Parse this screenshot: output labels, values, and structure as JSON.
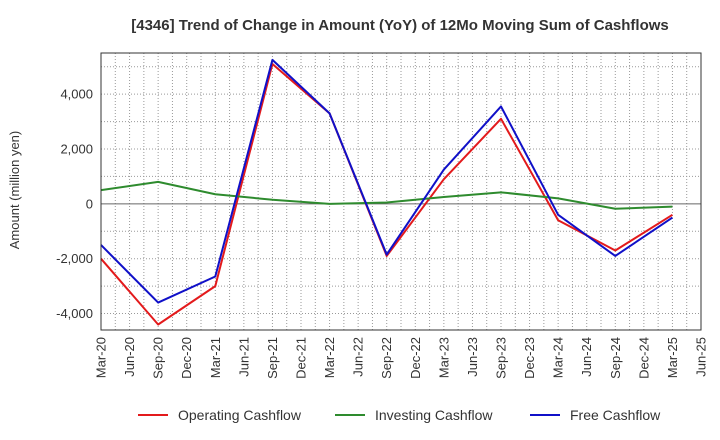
{
  "chart_data": {
    "type": "line",
    "title": "[4346]  Trend of Change in Amount (YoY) of 12Mo Moving Sum of Cashflows",
    "xlabel": "",
    "ylabel": "Amount (million yen)",
    "ylim": [
      -4600,
      5500
    ],
    "yticks": [
      -4000,
      -2000,
      0,
      2000,
      4000
    ],
    "ytick_labels": [
      "-4,000",
      "-2,000",
      "0",
      "2,000",
      "4,000"
    ],
    "categories": [
      "Mar-20",
      "Jun-20",
      "Sep-20",
      "Dec-20",
      "Mar-21",
      "Jun-21",
      "Sep-21",
      "Dec-21",
      "Mar-22",
      "Jun-22",
      "Sep-22",
      "Dec-22",
      "Mar-23",
      "Jun-23",
      "Sep-23",
      "Dec-23",
      "Mar-24",
      "Jun-24",
      "Sep-24",
      "Dec-24",
      "Mar-25",
      "Jun-25"
    ],
    "grid": true,
    "legend_position": "bottom",
    "series": [
      {
        "name": "Operating Cashflow",
        "color": "#e31a1c",
        "points": [
          [
            "Mar-20",
            -2000
          ],
          [
            "Sep-20",
            -4400
          ],
          [
            "Mar-21",
            -3000
          ],
          [
            "Sep-21",
            5100
          ],
          [
            "Mar-22",
            3300
          ],
          [
            "Sep-22",
            -1900
          ],
          [
            "Mar-23",
            900
          ],
          [
            "Sep-23",
            3100
          ],
          [
            "Mar-24",
            -600
          ],
          [
            "Sep-24",
            -1700
          ],
          [
            "Mar-25",
            -400
          ]
        ]
      },
      {
        "name": "Investing Cashflow",
        "color": "#2e8b2e",
        "points": [
          [
            "Mar-20",
            500
          ],
          [
            "Sep-20",
            800
          ],
          [
            "Mar-21",
            350
          ],
          [
            "Sep-21",
            150
          ],
          [
            "Mar-22",
            0
          ],
          [
            "Sep-22",
            50
          ],
          [
            "Mar-23",
            250
          ],
          [
            "Sep-23",
            420
          ],
          [
            "Mar-24",
            200
          ],
          [
            "Sep-24",
            -180
          ],
          [
            "Mar-25",
            -100
          ]
        ]
      },
      {
        "name": "Free Cashflow",
        "color": "#1010c8",
        "points": [
          [
            "Mar-20",
            -1500
          ],
          [
            "Sep-20",
            -3600
          ],
          [
            "Mar-21",
            -2650
          ],
          [
            "Sep-21",
            5250
          ],
          [
            "Mar-22",
            3300
          ],
          [
            "Sep-22",
            -1850
          ],
          [
            "Mar-23",
            1250
          ],
          [
            "Sep-23",
            3550
          ],
          [
            "Mar-24",
            -400
          ],
          [
            "Sep-24",
            -1900
          ],
          [
            "Mar-25",
            -500
          ]
        ]
      }
    ]
  }
}
